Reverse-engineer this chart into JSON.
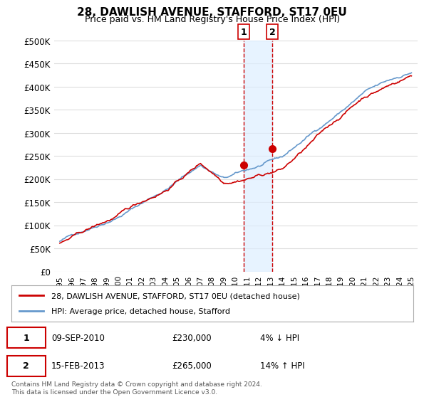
{
  "title": "28, DAWLISH AVENUE, STAFFORD, ST17 0EU",
  "subtitle": "Price paid vs. HM Land Registry's House Price Index (HPI)",
  "ylabel_ticks": [
    "£0",
    "£50K",
    "£100K",
    "£150K",
    "£200K",
    "£250K",
    "£300K",
    "£350K",
    "£400K",
    "£450K",
    "£500K"
  ],
  "ytick_values": [
    0,
    50000,
    100000,
    150000,
    200000,
    250000,
    300000,
    350000,
    400000,
    450000,
    500000
  ],
  "ylim": [
    0,
    500000
  ],
  "xlim_start": 1994.5,
  "xlim_end": 2025.5,
  "sale1_date": 2010.69,
  "sale1_price": 230000,
  "sale1_label": "1",
  "sale2_date": 2013.12,
  "sale2_price": 265000,
  "sale2_label": "2",
  "shade_x1": 2010.69,
  "shade_x2": 2013.12,
  "line_color_price": "#cc0000",
  "line_color_hpi": "#6699cc",
  "dot_color": "#cc0000",
  "vline_color": "#cc0000",
  "shade_color": "#ddeeff",
  "background_color": "#ffffff",
  "grid_color": "#dddddd",
  "legend1_text": "28, DAWLISH AVENUE, STAFFORD, ST17 0EU (detached house)",
  "legend2_text": "HPI: Average price, detached house, Stafford",
  "footnote": "Contains HM Land Registry data © Crown copyright and database right 2024.\nThis data is licensed under the Open Government Licence v3.0.",
  "table_rows": [
    {
      "num": "1",
      "date": "09-SEP-2010",
      "price": "£230,000",
      "change": "4% ↓ HPI"
    },
    {
      "num": "2",
      "date": "15-FEB-2013",
      "price": "£265,000",
      "change": "14% ↑ HPI"
    }
  ]
}
